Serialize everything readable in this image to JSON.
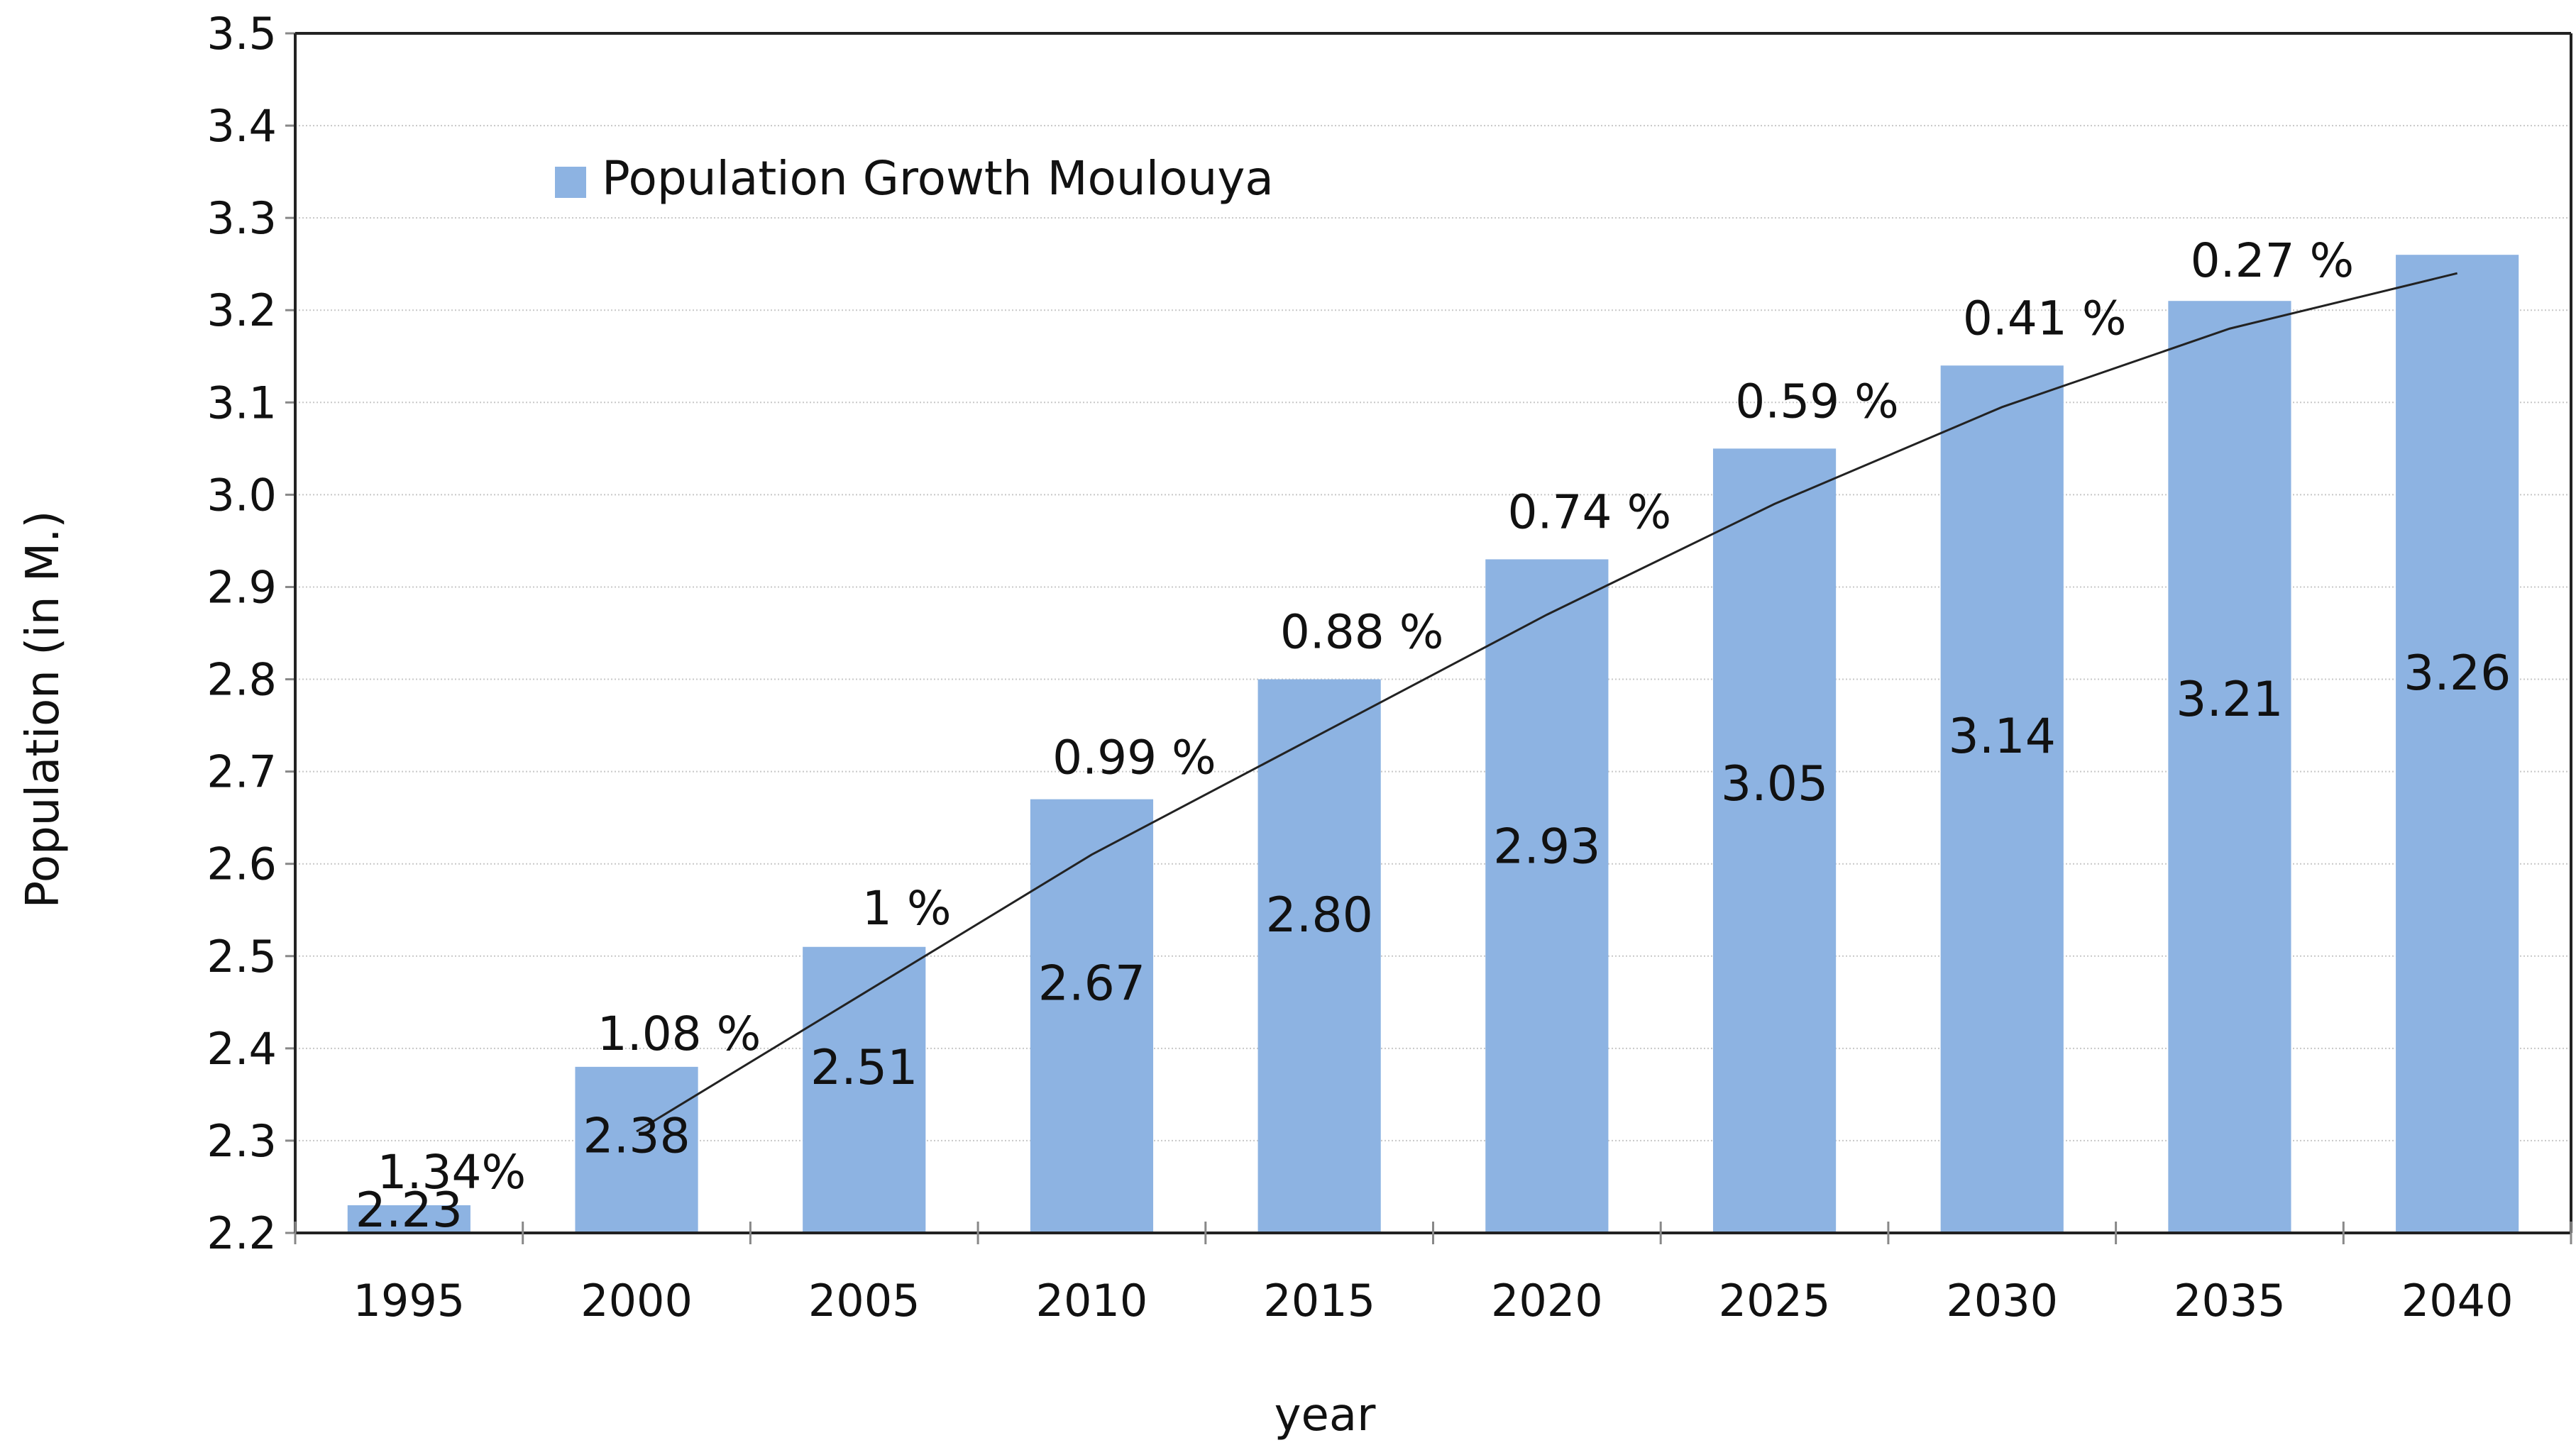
{
  "colors": {
    "bar": "#8db3e2",
    "trend": "#222222",
    "grid": "#c8c8c8"
  },
  "chart_data": {
    "type": "bar",
    "title": "",
    "xlabel": "year",
    "ylabel": "Population (in M.)",
    "ylim": [
      2.2,
      3.5
    ],
    "yticks": [
      "2.2",
      "2.3",
      "2.4",
      "2.5",
      "2.6",
      "2.7",
      "2.8",
      "2.9",
      "3.0",
      "3.1",
      "3.2",
      "3.3",
      "3.4",
      "3.5"
    ],
    "categories": [
      "1995",
      "2000",
      "2005",
      "2010",
      "2015",
      "2020",
      "2025",
      "2030",
      "2035",
      "2040"
    ],
    "series": [
      {
        "name": "Population Growth Moulouya",
        "values": [
          2.23,
          2.38,
          2.51,
          2.67,
          2.8,
          2.93,
          3.05,
          3.14,
          3.21,
          3.26
        ],
        "labels": [
          "2.23",
          "2.38",
          "2.51",
          "2.67",
          "2.80",
          "2.93",
          "3.05",
          "3.14",
          "3.21",
          "3.26"
        ]
      }
    ],
    "growth_labels": [
      "1.34%",
      "1.08 %",
      "1 %",
      "0.99 %",
      "0.88 %",
      "0.74 %",
      "0.59 %",
      "0.41 %",
      "0.27 %"
    ],
    "trend_values": [
      2.31,
      2.46,
      2.61,
      2.74,
      2.87,
      2.99,
      3.095,
      3.18,
      3.24
    ],
    "legend": {
      "label": "Population Growth Moulouya",
      "position": "top-left"
    }
  }
}
